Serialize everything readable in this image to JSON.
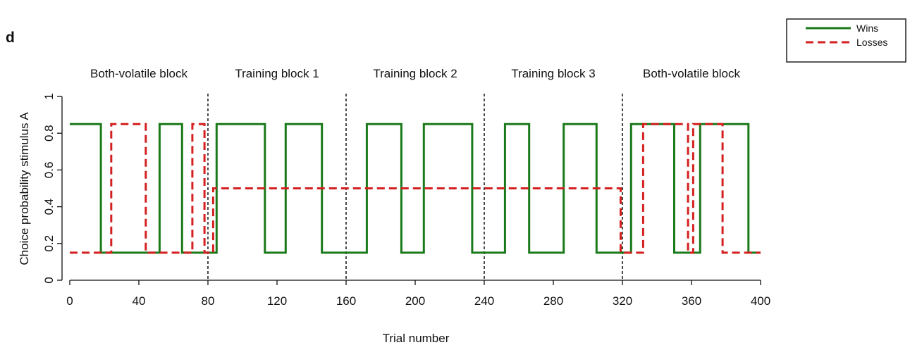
{
  "panel_label": "d",
  "chart_data": {
    "type": "line",
    "title": "",
    "xlabel": "Trial number",
    "ylabel": "Choice probability stimulus A",
    "xlim": [
      0,
      400
    ],
    "ylim": [
      0,
      1
    ],
    "xticks": [
      0,
      40,
      80,
      120,
      160,
      200,
      240,
      280,
      320,
      360,
      400
    ],
    "yticks": [
      0,
      0.2,
      0.4,
      0.6,
      0.8,
      1
    ],
    "ytick_labels": [
      "0",
      "0.2",
      "0.4",
      "0.6",
      "0.8",
      "1"
    ],
    "grid": false,
    "legend": {
      "position": "top-right"
    },
    "block_boundaries": [
      80,
      160,
      240,
      320
    ],
    "blocks": [
      {
        "label": "Both-volatile block",
        "start": 0,
        "end": 80
      },
      {
        "label": "Training block 1",
        "start": 80,
        "end": 160
      },
      {
        "label": "Training block 2",
        "start": 160,
        "end": 240
      },
      {
        "label": "Training block 3",
        "start": 240,
        "end": 320
      },
      {
        "label": "Both-volatile block",
        "start": 320,
        "end": 400
      }
    ],
    "series": [
      {
        "name": "Wins",
        "color": "#1a7a1a",
        "style": "solid",
        "x": [
          0,
          18,
          18,
          52,
          52,
          65,
          65,
          85,
          85,
          113,
          113,
          125,
          125,
          146,
          146,
          172,
          172,
          192,
          192,
          205,
          205,
          233,
          233,
          252,
          252,
          266,
          266,
          286,
          286,
          305,
          305,
          325,
          325,
          350,
          350,
          365,
          365,
          393,
          393,
          400
        ],
        "y": [
          0.85,
          0.85,
          0.15,
          0.15,
          0.85,
          0.85,
          0.15,
          0.15,
          0.85,
          0.85,
          0.15,
          0.15,
          0.85,
          0.85,
          0.15,
          0.15,
          0.85,
          0.85,
          0.15,
          0.15,
          0.85,
          0.85,
          0.15,
          0.15,
          0.85,
          0.85,
          0.15,
          0.15,
          0.85,
          0.85,
          0.15,
          0.15,
          0.85,
          0.85,
          0.15,
          0.15,
          0.85,
          0.85,
          0.15,
          0.15
        ]
      },
      {
        "name": "Losses",
        "color": "#d42020",
        "style": "dashed",
        "x": [
          0,
          24,
          24,
          44,
          44,
          71,
          71,
          78,
          78,
          83,
          83,
          319,
          319,
          332,
          332,
          358,
          358,
          361,
          361,
          378,
          378,
          400
        ],
        "y": [
          0.15,
          0.15,
          0.85,
          0.85,
          0.15,
          0.15,
          0.85,
          0.85,
          0.15,
          0.15,
          0.5,
          0.5,
          0.15,
          0.15,
          0.85,
          0.85,
          0.15,
          0.15,
          0.85,
          0.85,
          0.15,
          0.15
        ]
      }
    ]
  }
}
